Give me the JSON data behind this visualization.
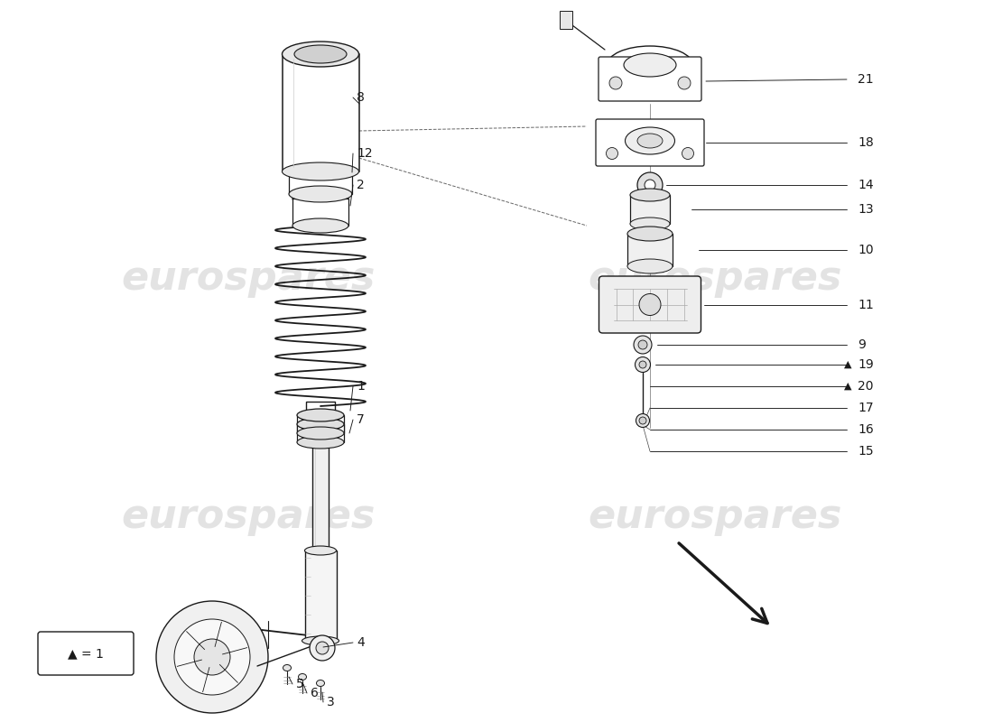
{
  "bg_color": "#ffffff",
  "lc": "#1a1a1a",
  "lc_light": "#aaaaaa",
  "wm_color": "#d8d8d8",
  "wm_texts": [
    "eurospares",
    "eurospares",
    "eurospares",
    "eurospares"
  ],
  "wm_pos_norm": [
    [
      0.25,
      0.615
    ],
    [
      0.72,
      0.615
    ],
    [
      0.25,
      0.285
    ],
    [
      0.72,
      0.285
    ]
  ],
  "wm_fontsize": 32,
  "label_fontsize": 10,
  "legend_text": "▲ = 1",
  "figsize": [
    11.0,
    8.0
  ],
  "dpi": 100,
  "xlim": [
    0,
    11
  ],
  "ylim": [
    0,
    8
  ]
}
